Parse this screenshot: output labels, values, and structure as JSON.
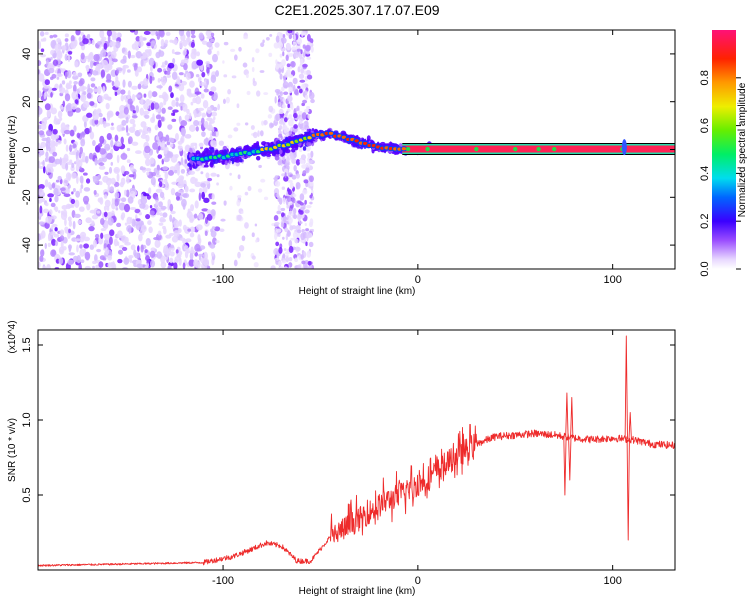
{
  "title": "C2E1.2025.307.17.07.E09",
  "colors": {
    "line": "#ee2b2b",
    "ridge": "#ff2a2a",
    "axis": "#000000"
  },
  "chart_data": [
    {
      "type": "heatmap",
      "name": "spectrogram",
      "xlabel": "Height of straight line (km)",
      "ylabel": "Frequency (Hz)",
      "xlim": [
        -195,
        132
      ],
      "ylim": [
        -50,
        50
      ],
      "xticks": [
        {
          "value": -100,
          "label": "-100"
        },
        {
          "value": 0,
          "label": "0"
        },
        {
          "value": 100,
          "label": "100"
        }
      ],
      "yticks": [
        {
          "value": -40,
          "label": "-40"
        },
        {
          "value": -20,
          "label": "-20"
        },
        {
          "value": 0,
          "label": "0"
        },
        {
          "value": 20,
          "label": "20"
        },
        {
          "value": 40,
          "label": "40"
        }
      ],
      "colorbar": {
        "label": "Normalized spectral amplitude",
        "range": [
          0,
          1
        ],
        "ticks": [
          {
            "value": 0.0,
            "label": "0.0"
          },
          {
            "value": 0.2,
            "label": "0.2"
          },
          {
            "value": 0.4,
            "label": "0.4"
          },
          {
            "value": 0.6,
            "label": "0.6"
          },
          {
            "value": 0.8,
            "label": "0.8"
          }
        ]
      },
      "ridge_track": {
        "x": [
          -115,
          -100,
          -85,
          -70,
          -60,
          -52,
          -45,
          -38,
          -30,
          -22,
          -15,
          -8,
          0,
          10,
          30,
          60,
          90,
          105,
          132
        ],
        "y": [
          -4,
          -3,
          -1,
          1.5,
          4,
          6,
          6.5,
          5,
          3,
          1.5,
          0.5,
          0.2,
          0.3,
          0.2,
          0.2,
          0.2,
          0.2,
          0.2,
          0.2
        ]
      }
    },
    {
      "type": "line",
      "name": "snr",
      "xlabel": "Height of straight line (km)",
      "ylabel": "SNR (10 * v/v)",
      "yscale_label": "(x10^4)",
      "xlim": [
        -195,
        132
      ],
      "ylim": [
        0,
        1.6
      ],
      "xticks": [
        {
          "value": -100,
          "label": "-100"
        },
        {
          "value": 0,
          "label": "0"
        },
        {
          "value": 100,
          "label": "100"
        }
      ],
      "yticks": [
        {
          "value": 0.5,
          "label": "0.5"
        },
        {
          "value": 1.0,
          "label": "1.0"
        },
        {
          "value": 1.5,
          "label": "1.5"
        }
      ],
      "trend": {
        "x": [
          -195,
          -150,
          -110,
          -95,
          -85,
          -78,
          -70,
          -62,
          -55,
          -45,
          -30,
          -20,
          -10,
          0,
          10,
          20,
          30,
          40,
          50,
          60,
          70,
          80,
          90,
          100,
          110,
          120,
          132
        ],
        "y": [
          0.03,
          0.04,
          0.05,
          0.09,
          0.14,
          0.18,
          0.16,
          0.06,
          0.06,
          0.22,
          0.34,
          0.43,
          0.5,
          0.57,
          0.66,
          0.76,
          0.84,
          0.89,
          0.9,
          0.91,
          0.9,
          0.88,
          0.87,
          0.88,
          0.87,
          0.84,
          0.83
        ]
      },
      "spikes": [
        {
          "x": 75.5,
          "y": 0.5
        },
        {
          "x": 76.5,
          "y": 1.18
        },
        {
          "x": 78,
          "y": 0.6
        },
        {
          "x": 79,
          "y": 1.15
        },
        {
          "x": 107,
          "y": 1.56
        },
        {
          "x": 108,
          "y": 0.2
        },
        {
          "x": 109,
          "y": 1.05
        }
      ]
    }
  ]
}
